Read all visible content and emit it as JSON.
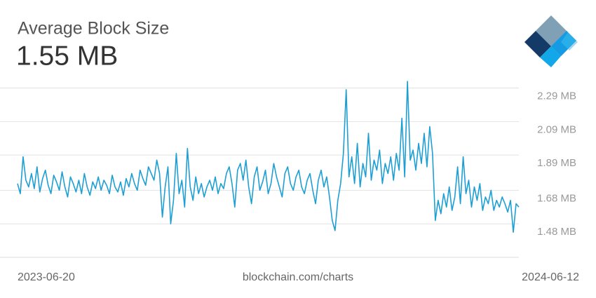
{
  "chart_data": {
    "type": "line",
    "title": "Average Block Size",
    "subtitle": "1.55 MB",
    "source": "blockchain.com/charts",
    "categories": [
      "2023-06-20",
      null,
      null,
      null,
      null,
      null,
      null,
      null,
      null,
      null,
      null,
      null,
      null,
      null,
      null,
      null,
      null,
      null,
      null,
      null,
      null,
      null,
      null,
      null,
      null,
      null,
      null,
      null,
      null,
      null,
      null,
      null,
      null,
      null,
      null,
      null,
      null,
      null,
      null,
      null,
      null,
      null,
      null,
      null,
      null,
      null,
      null,
      null,
      null,
      null,
      null,
      null,
      null,
      null,
      null,
      null,
      null,
      null,
      null,
      null,
      null,
      null,
      null,
      null,
      null,
      null,
      null,
      null,
      null,
      null,
      null,
      null,
      null,
      null,
      null,
      null,
      null,
      null,
      null,
      null,
      null,
      null,
      null,
      null,
      null,
      null,
      null,
      null,
      null,
      null,
      null,
      null,
      null,
      null,
      null,
      null,
      null,
      null,
      null,
      null,
      null,
      null,
      null,
      null,
      null,
      null,
      null,
      null,
      null,
      null,
      null,
      null,
      null,
      null,
      null,
      null,
      null,
      null,
      null,
      null,
      null,
      null,
      null,
      null,
      null,
      null,
      null,
      null,
      null,
      null,
      null,
      null,
      null,
      null,
      null,
      null,
      null,
      null,
      null,
      null,
      null,
      null,
      null,
      null,
      null,
      null,
      null,
      null,
      null,
      null,
      null,
      null,
      null,
      null,
      null,
      null,
      null,
      null,
      null,
      null,
      null,
      null,
      null,
      null,
      null,
      null,
      null,
      null,
      null,
      null,
      null,
      null,
      null,
      null,
      null,
      null,
      null,
      null,
      null,
      null,
      "2024-06-12"
    ],
    "series": [
      {
        "name": "Average Block Size",
        "color": "#1e9fd4",
        "values": [
          1.72,
          1.66,
          1.88,
          1.74,
          1.7,
          1.78,
          1.69,
          1.82,
          1.67,
          1.75,
          1.8,
          1.71,
          1.66,
          1.77,
          1.73,
          1.68,
          1.79,
          1.7,
          1.64,
          1.76,
          1.72,
          1.67,
          1.74,
          1.66,
          1.78,
          1.7,
          1.65,
          1.73,
          1.69,
          1.76,
          1.68,
          1.74,
          1.71,
          1.66,
          1.77,
          1.7,
          1.67,
          1.73,
          1.65,
          1.75,
          1.7,
          1.78,
          1.72,
          1.68,
          1.8,
          1.75,
          1.71,
          1.82,
          1.78,
          1.74,
          1.86,
          1.78,
          1.52,
          1.7,
          1.82,
          1.48,
          1.62,
          1.9,
          1.66,
          1.74,
          1.58,
          1.93,
          1.7,
          1.62,
          1.76,
          1.66,
          1.72,
          1.64,
          1.7,
          1.74,
          1.68,
          1.76,
          1.66,
          1.72,
          1.69,
          1.78,
          1.82,
          1.72,
          1.58,
          1.8,
          1.84,
          1.74,
          1.86,
          1.7,
          1.6,
          1.76,
          1.82,
          1.68,
          1.73,
          1.8,
          1.66,
          1.72,
          1.84,
          1.76,
          1.7,
          1.64,
          1.78,
          1.82,
          1.72,
          1.68,
          1.76,
          1.8,
          1.7,
          1.66,
          1.74,
          1.78,
          1.68,
          1.6,
          1.74,
          1.8,
          1.7,
          1.76,
          1.64,
          1.5,
          1.44,
          1.62,
          1.72,
          1.9,
          2.28,
          1.76,
          1.88,
          1.72,
          1.96,
          1.7,
          1.84,
          1.76,
          2.02,
          1.74,
          1.86,
          1.8,
          1.92,
          1.72,
          1.84,
          1.78,
          1.88,
          1.74,
          1.9,
          1.8,
          2.11,
          1.76,
          2.33,
          1.86,
          1.92,
          1.8,
          1.96,
          1.84,
          2.02,
          1.82,
          2.06,
          1.9,
          1.5,
          1.62,
          1.54,
          1.66,
          1.58,
          1.7,
          1.56,
          1.64,
          1.82,
          1.6,
          1.88,
          1.66,
          1.74,
          1.58,
          1.7,
          1.62,
          1.72,
          1.56,
          1.64,
          1.6,
          1.68,
          1.56,
          1.62,
          1.58,
          1.64,
          1.6,
          1.55,
          1.62,
          1.43,
          1.6,
          1.58
        ]
      }
    ],
    "ylim": [
      1.28,
      2.33
    ],
    "yticks": [
      {
        "value": 1.48,
        "label": "1.48 MB"
      },
      {
        "value": 1.68,
        "label": "1.68 MB"
      },
      {
        "value": 1.89,
        "label": "1.89 MB"
      },
      {
        "value": 2.09,
        "label": "2.09 MB"
      },
      {
        "value": 2.29,
        "label": "2.29 MB"
      }
    ],
    "grid": true
  }
}
